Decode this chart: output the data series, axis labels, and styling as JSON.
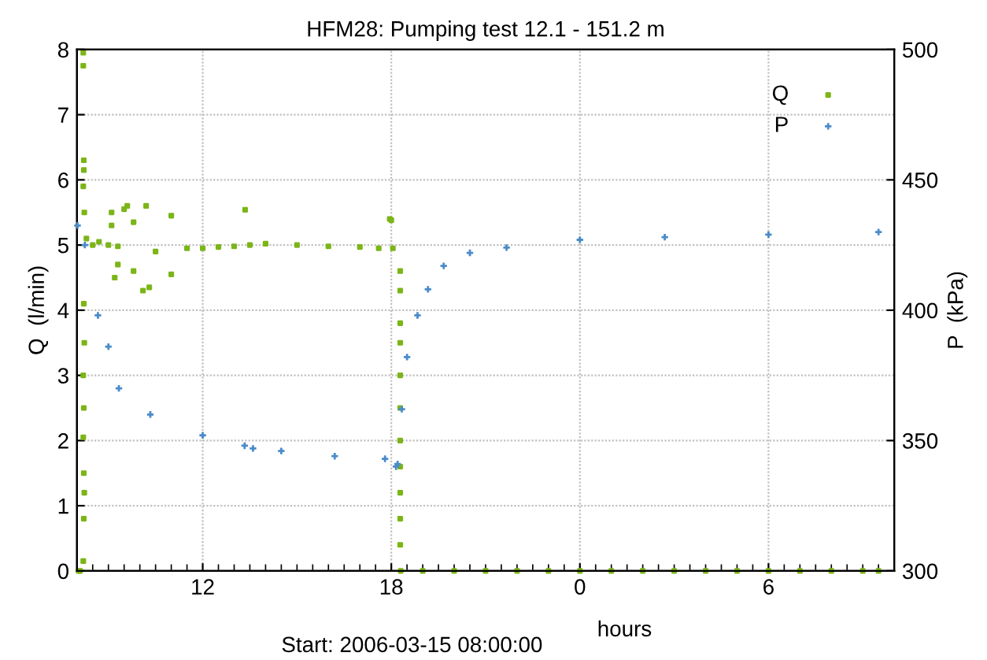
{
  "chart_data": {
    "type": "scatter",
    "title": "HFM28: Pumping test 12.1 - 151.2 m",
    "xlabel": "hours",
    "ylabel": "Q  (l/min)",
    "y2label": "P  (kPa)",
    "annotations": [
      "Start: 2006-03-15 08:00:00"
    ],
    "xlim": [
      "2006-03-15T08:00",
      "2006-03-16T10:00"
    ],
    "xticks": [
      {
        "value": "2006-03-15T12:00",
        "label": "12"
      },
      {
        "value": "2006-03-15T18:00",
        "label": "18"
      },
      {
        "value": "2006-03-16T00:00",
        "label": "0"
      },
      {
        "value": "2006-03-16T06:00",
        "label": "6"
      }
    ],
    "ylim": [
      0,
      8
    ],
    "yticks": [
      0,
      1,
      2,
      3,
      4,
      5,
      6,
      7,
      8
    ],
    "y2lim": [
      300,
      500
    ],
    "y2ticks": [
      300,
      350,
      400,
      450,
      500
    ],
    "grid": true,
    "legend": "top right",
    "series": [
      {
        "name": "Q",
        "color": "#7cb518",
        "marker": "square",
        "x": [
          "2006-03-15T08:03",
          "2006-03-15T08:06",
          "2006-03-15T08:12",
          "2006-03-15T08:12",
          "2006-03-15T08:13",
          "2006-03-15T08:13",
          "2006-03-15T08:12",
          "2006-03-15T08:14",
          "2006-03-15T08:13",
          "2006-03-15T08:14",
          "2006-03-15T08:12",
          "2006-03-15T08:13",
          "2006-03-15T08:12",
          "2006-03-15T08:13",
          "2006-03-15T08:14",
          "2006-03-15T08:13",
          "2006-03-15T08:12",
          "2006-03-15T08:18",
          "2006-03-15T08:30",
          "2006-03-15T08:42",
          "2006-03-15T09:00",
          "2006-03-15T09:06",
          "2006-03-15T09:06",
          "2006-03-15T09:12",
          "2006-03-15T09:18",
          "2006-03-15T09:18",
          "2006-03-15T09:30",
          "2006-03-15T09:36",
          "2006-03-15T09:48",
          "2006-03-15T09:48",
          "2006-03-15T10:06",
          "2006-03-15T10:12",
          "2006-03-15T10:18",
          "2006-03-15T10:30",
          "2006-03-15T11:00",
          "2006-03-15T11:00",
          "2006-03-15T11:30",
          "2006-03-15T12:00",
          "2006-03-15T12:30",
          "2006-03-15T13:00",
          "2006-03-15T13:21",
          "2006-03-15T13:30",
          "2006-03-15T14:00",
          "2006-03-15T15:00",
          "2006-03-15T16:00",
          "2006-03-15T17:00",
          "2006-03-15T17:36",
          "2006-03-15T17:57",
          "2006-03-15T18:00",
          "2006-03-15T18:03",
          "2006-03-15T18:17",
          "2006-03-15T18:17",
          "2006-03-15T18:17",
          "2006-03-15T18:17",
          "2006-03-15T18:17",
          "2006-03-15T18:17",
          "2006-03-15T18:17",
          "2006-03-15T18:17",
          "2006-03-15T18:17",
          "2006-03-15T18:17",
          "2006-03-15T18:17",
          "2006-03-15T18:18",
          "2006-03-15T19:00",
          "2006-03-15T20:00",
          "2006-03-15T21:00",
          "2006-03-15T22:00",
          "2006-03-15T23:00",
          "2006-03-16T00:00",
          "2006-03-16T01:00",
          "2006-03-16T02:00",
          "2006-03-16T03:00",
          "2006-03-16T04:00",
          "2006-03-16T05:00",
          "2006-03-16T06:00",
          "2006-03-16T07:00",
          "2006-03-16T08:00",
          "2006-03-16T09:00",
          "2006-03-16T09:30"
        ],
        "values": [
          0,
          0,
          7.95,
          7.75,
          6.3,
          6.15,
          5.9,
          5.5,
          4.1,
          3.5,
          3.0,
          2.5,
          2.05,
          1.5,
          1.2,
          0.8,
          0.15,
          5.1,
          5.0,
          5.05,
          5.0,
          5.5,
          5.3,
          4.5,
          4.7,
          4.98,
          5.55,
          5.6,
          5.35,
          4.6,
          4.3,
          5.6,
          4.35,
          4.9,
          5.45,
          4.55,
          4.95,
          4.95,
          4.97,
          4.98,
          5.54,
          5.0,
          5.02,
          5.0,
          4.98,
          4.97,
          4.95,
          5.4,
          5.38,
          4.95,
          4.6,
          4.3,
          3.8,
          3.5,
          3.0,
          2.5,
          2.0,
          1.6,
          1.2,
          0.8,
          0.4,
          0,
          0,
          0,
          0,
          0,
          0,
          0,
          0,
          0,
          0,
          0,
          0,
          0,
          0,
          0,
          0,
          0
        ]
      },
      {
        "name": "P",
        "color": "#4a8bc9",
        "marker": "cross",
        "axis": "y2",
        "x": [
          "2006-03-15T08:01",
          "2006-03-15T08:15",
          "2006-03-15T08:40",
          "2006-03-15T09:00",
          "2006-03-15T09:20",
          "2006-03-15T10:20",
          "2006-03-15T12:00",
          "2006-03-15T13:20",
          "2006-03-15T13:36",
          "2006-03-15T14:30",
          "2006-03-15T16:12",
          "2006-03-15T17:48",
          "2006-03-15T18:09",
          "2006-03-15T18:12",
          "2006-03-15T18:20",
          "2006-03-15T18:30",
          "2006-03-15T18:50",
          "2006-03-15T19:10",
          "2006-03-15T19:40",
          "2006-03-15T20:30",
          "2006-03-15T21:40",
          "2006-03-16T00:00",
          "2006-03-16T02:42",
          "2006-03-16T06:00",
          "2006-03-16T09:30"
        ],
        "values": [
          432.5,
          425,
          398,
          386,
          370,
          360,
          352,
          348,
          347,
          346,
          344,
          343,
          340,
          341,
          362,
          382,
          398,
          408,
          417,
          422,
          424,
          427,
          428,
          429,
          430
        ]
      }
    ]
  }
}
